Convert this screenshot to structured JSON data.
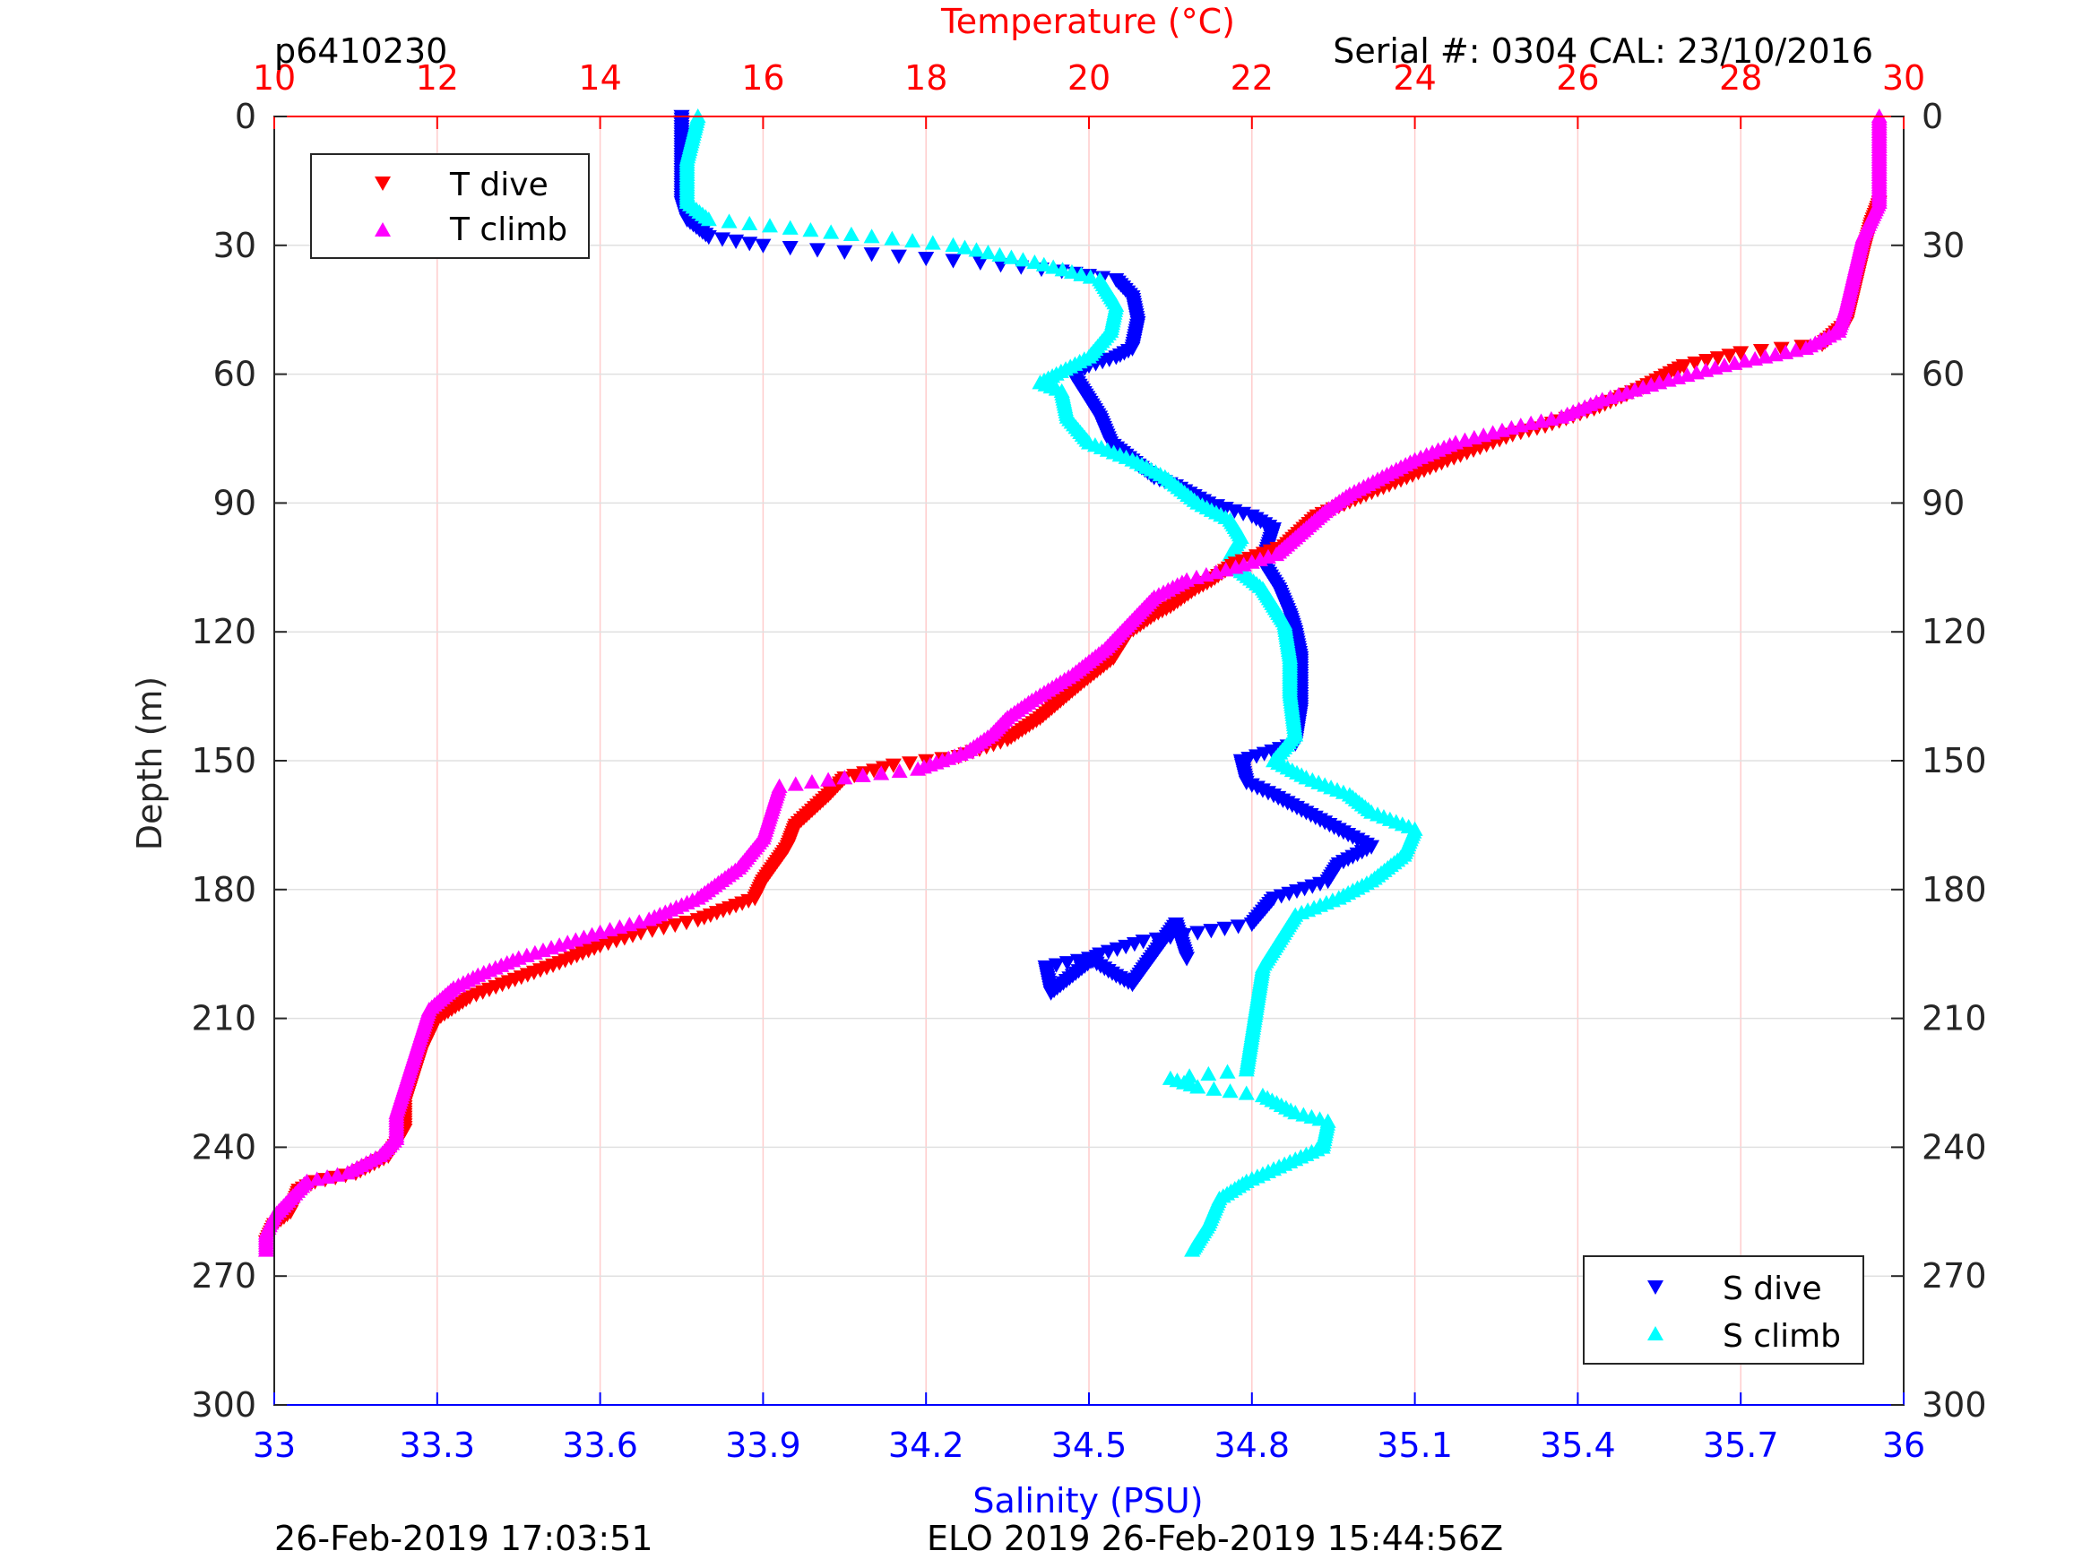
{
  "header": {
    "plot_id": "p6410230",
    "serial": "Serial #: 0304  CAL: 23/10/2016"
  },
  "footer": {
    "left": "26-Feb-2019 17:03:51",
    "center": "ELO 2019 26-Feb-2019 15:44:56Z"
  },
  "colors": {
    "t_dive": "#ff0000",
    "t_climb": "#ff00ff",
    "s_dive": "#0000ff",
    "s_climb": "#00ffff",
    "temperature_axis": "#ff0000",
    "salinity_axis": "#0000ff",
    "temperature_grid": "#ffcccc",
    "depth_grid": "#e0e0e0"
  },
  "chart_data": {
    "type": "scatter",
    "title": "",
    "ylabel": "Depth (m)",
    "ylim": [
      300,
      0
    ],
    "yticks": [
      0,
      30,
      60,
      90,
      120,
      150,
      180,
      210,
      240,
      270,
      300
    ],
    "x_top": {
      "label": "Temperature (°C)",
      "lim": [
        10,
        30
      ],
      "ticks": [
        10,
        12,
        14,
        16,
        18,
        20,
        22,
        24,
        26,
        28,
        30
      ]
    },
    "x_bottom": {
      "label": "Salinity (PSU)",
      "lim": [
        33,
        36
      ],
      "ticks": [
        "33",
        "33.3",
        "33.6",
        "33.9",
        "34.2",
        "34.5",
        "34.8",
        "35.1",
        "35.4",
        "35.7",
        "36"
      ]
    },
    "grid": true,
    "legends": [
      {
        "position": "top-left",
        "entries": [
          "T dive",
          "T climb"
        ]
      },
      {
        "position": "bottom-right",
        "entries": [
          "S dive",
          "S climb"
        ]
      }
    ],
    "series": [
      {
        "name": "T dive",
        "axis": "temperature",
        "marker": "triangle-down",
        "color": "#ff0000",
        "points": [
          [
            29.7,
            20
          ],
          [
            29.6,
            25
          ],
          [
            29.5,
            32
          ],
          [
            29.4,
            40
          ],
          [
            29.3,
            48
          ],
          [
            29.0,
            53
          ],
          [
            28.0,
            55
          ],
          [
            27.3,
            58
          ],
          [
            26.8,
            63
          ],
          [
            26.2,
            68
          ],
          [
            25.6,
            72
          ],
          [
            25.2,
            74
          ],
          [
            24.4,
            80
          ],
          [
            23.9,
            84
          ],
          [
            23.4,
            88
          ],
          [
            22.8,
            93
          ],
          [
            22.4,
            100
          ],
          [
            21.8,
            104
          ],
          [
            21.5,
            108
          ],
          [
            21.3,
            110
          ],
          [
            21.0,
            114
          ],
          [
            20.8,
            116
          ],
          [
            20.5,
            120
          ],
          [
            20.3,
            126
          ],
          [
            19.9,
            132
          ],
          [
            19.4,
            140
          ],
          [
            19.0,
            145
          ],
          [
            18.4,
            149
          ],
          [
            17.6,
            151
          ],
          [
            17.0,
            154
          ],
          [
            16.8,
            158
          ],
          [
            16.4,
            165
          ],
          [
            16.3,
            170
          ],
          [
            16.0,
            178
          ],
          [
            15.9,
            182
          ],
          [
            15.2,
            187
          ],
          [
            14.5,
            190
          ],
          [
            14.0,
            193
          ],
          [
            13.5,
            197
          ],
          [
            12.8,
            202
          ],
          [
            12.4,
            205
          ],
          [
            12.0,
            210
          ],
          [
            11.8,
            218
          ],
          [
            11.7,
            224
          ],
          [
            11.6,
            230
          ],
          [
            11.6,
            236
          ],
          [
            11.4,
            242
          ],
          [
            11.0,
            246
          ],
          [
            10.5,
            248
          ],
          [
            10.3,
            250
          ],
          [
            10.2,
            255
          ],
          [
            10.0,
            258
          ],
          [
            9.9,
            262
          ]
        ]
      },
      {
        "name": "T climb",
        "axis": "temperature",
        "marker": "triangle-up",
        "color": "#ff00ff",
        "points": [
          [
            29.7,
            0
          ],
          [
            29.7,
            10
          ],
          [
            29.7,
            20
          ],
          [
            29.5,
            28
          ],
          [
            29.4,
            36
          ],
          [
            29.3,
            44
          ],
          [
            29.2,
            50
          ],
          [
            28.8,
            54
          ],
          [
            28.3,
            56
          ],
          [
            27.8,
            58
          ],
          [
            27.0,
            62
          ],
          [
            26.3,
            66
          ],
          [
            25.8,
            70
          ],
          [
            25.3,
            72
          ],
          [
            24.5,
            76
          ],
          [
            24.0,
            80
          ],
          [
            23.6,
            84
          ],
          [
            23.2,
            88
          ],
          [
            22.9,
            92
          ],
          [
            22.6,
            97
          ],
          [
            22.3,
            102
          ],
          [
            21.8,
            105
          ],
          [
            21.2,
            108
          ],
          [
            20.8,
            112
          ],
          [
            20.5,
            118
          ],
          [
            20.2,
            124
          ],
          [
            19.8,
            130
          ],
          [
            19.3,
            136
          ],
          [
            19.0,
            140
          ],
          [
            18.8,
            144
          ],
          [
            18.5,
            148
          ],
          [
            18.2,
            150
          ],
          [
            17.9,
            152
          ],
          [
            17.0,
            154
          ],
          [
            16.2,
            156
          ],
          [
            16.1,
            162
          ],
          [
            16.0,
            168
          ],
          [
            15.7,
            175
          ],
          [
            15.2,
            182
          ],
          [
            14.6,
            187
          ],
          [
            14.0,
            190
          ],
          [
            13.5,
            193
          ],
          [
            13.0,
            196
          ],
          [
            12.5,
            200
          ],
          [
            12.2,
            203
          ],
          [
            11.9,
            208
          ],
          [
            11.8,
            214
          ],
          [
            11.7,
            220
          ],
          [
            11.6,
            226
          ],
          [
            11.5,
            232
          ],
          [
            11.5,
            238
          ],
          [
            11.3,
            242
          ],
          [
            10.9,
            246
          ],
          [
            10.4,
            248
          ],
          [
            10.2,
            252
          ],
          [
            10.0,
            256
          ],
          [
            9.9,
            260
          ],
          [
            9.9,
            264
          ]
        ]
      },
      {
        "name": "S dive",
        "axis": "salinity",
        "marker": "triangle-down",
        "color": "#0000ff",
        "points": [
          [
            33.75,
            0
          ],
          [
            33.75,
            10
          ],
          [
            33.75,
            20
          ],
          [
            33.76,
            24
          ],
          [
            33.8,
            28
          ],
          [
            33.9,
            30
          ],
          [
            34.1,
            32
          ],
          [
            34.3,
            34
          ],
          [
            34.45,
            36
          ],
          [
            34.55,
            38
          ],
          [
            34.58,
            42
          ],
          [
            34.59,
            48
          ],
          [
            34.58,
            54
          ],
          [
            34.55,
            56
          ],
          [
            34.5,
            58
          ],
          [
            34.47,
            60
          ],
          [
            34.48,
            62
          ],
          [
            34.5,
            66
          ],
          [
            34.52,
            70
          ],
          [
            34.54,
            76
          ],
          [
            34.58,
            80
          ],
          [
            34.62,
            84
          ],
          [
            34.66,
            86
          ],
          [
            34.72,
            90
          ],
          [
            34.8,
            93
          ],
          [
            34.84,
            96
          ],
          [
            34.83,
            100
          ],
          [
            34.82,
            104
          ],
          [
            34.85,
            110
          ],
          [
            34.87,
            116
          ],
          [
            34.88,
            120
          ],
          [
            34.89,
            126
          ],
          [
            34.89,
            132
          ],
          [
            34.89,
            138
          ],
          [
            34.88,
            146
          ],
          [
            34.78,
            150
          ],
          [
            34.79,
            155
          ],
          [
            34.84,
            158
          ],
          [
            34.9,
            162
          ],
          [
            34.96,
            166
          ],
          [
            35.02,
            170
          ],
          [
            34.96,
            174
          ],
          [
            34.94,
            178
          ],
          [
            34.84,
            182
          ],
          [
            34.8,
            188
          ],
          [
            34.7,
            190
          ],
          [
            34.6,
            192
          ],
          [
            34.52,
            195
          ],
          [
            34.47,
            200
          ],
          [
            34.43,
            204
          ],
          [
            34.42,
            198
          ],
          [
            34.5,
            196
          ],
          [
            34.55,
            200
          ],
          [
            34.58,
            202
          ],
          [
            34.66,
            188
          ],
          [
            34.68,
            196
          ]
        ]
      },
      {
        "name": "S climb",
        "axis": "salinity",
        "marker": "triangle-up",
        "color": "#00ffff",
        "points": [
          [
            33.78,
            0
          ],
          [
            33.76,
            10
          ],
          [
            33.76,
            20
          ],
          [
            33.8,
            24
          ],
          [
            33.95,
            26
          ],
          [
            34.1,
            28
          ],
          [
            34.25,
            30
          ],
          [
            34.4,
            34
          ],
          [
            34.52,
            38
          ],
          [
            34.55,
            44
          ],
          [
            34.54,
            50
          ],
          [
            34.5,
            56
          ],
          [
            34.44,
            60
          ],
          [
            34.41,
            62
          ],
          [
            34.45,
            64
          ],
          [
            34.46,
            70
          ],
          [
            34.5,
            76
          ],
          [
            34.58,
            80
          ],
          [
            34.64,
            84
          ],
          [
            34.7,
            90
          ],
          [
            34.76,
            94
          ],
          [
            34.78,
            98
          ],
          [
            34.76,
            102
          ],
          [
            34.78,
            106
          ],
          [
            34.82,
            110
          ],
          [
            34.86,
            118
          ],
          [
            34.87,
            126
          ],
          [
            34.87,
            134
          ],
          [
            34.88,
            144
          ],
          [
            34.84,
            150
          ],
          [
            34.9,
            154
          ],
          [
            34.98,
            158
          ],
          [
            35.02,
            162
          ],
          [
            35.1,
            166
          ],
          [
            35.08,
            172
          ],
          [
            35.02,
            178
          ],
          [
            34.96,
            182
          ],
          [
            34.88,
            186
          ],
          [
            34.85,
            192
          ],
          [
            34.82,
            198
          ],
          [
            34.81,
            206
          ],
          [
            34.8,
            214
          ],
          [
            34.79,
            222
          ],
          [
            34.65,
            224
          ],
          [
            34.7,
            226
          ],
          [
            34.82,
            228
          ],
          [
            34.88,
            232
          ],
          [
            34.94,
            234
          ],
          [
            34.93,
            240
          ],
          [
            34.86,
            244
          ],
          [
            34.79,
            248
          ],
          [
            34.74,
            252
          ],
          [
            34.72,
            258
          ],
          [
            34.7,
            262
          ],
          [
            34.69,
            264
          ]
        ]
      }
    ]
  }
}
